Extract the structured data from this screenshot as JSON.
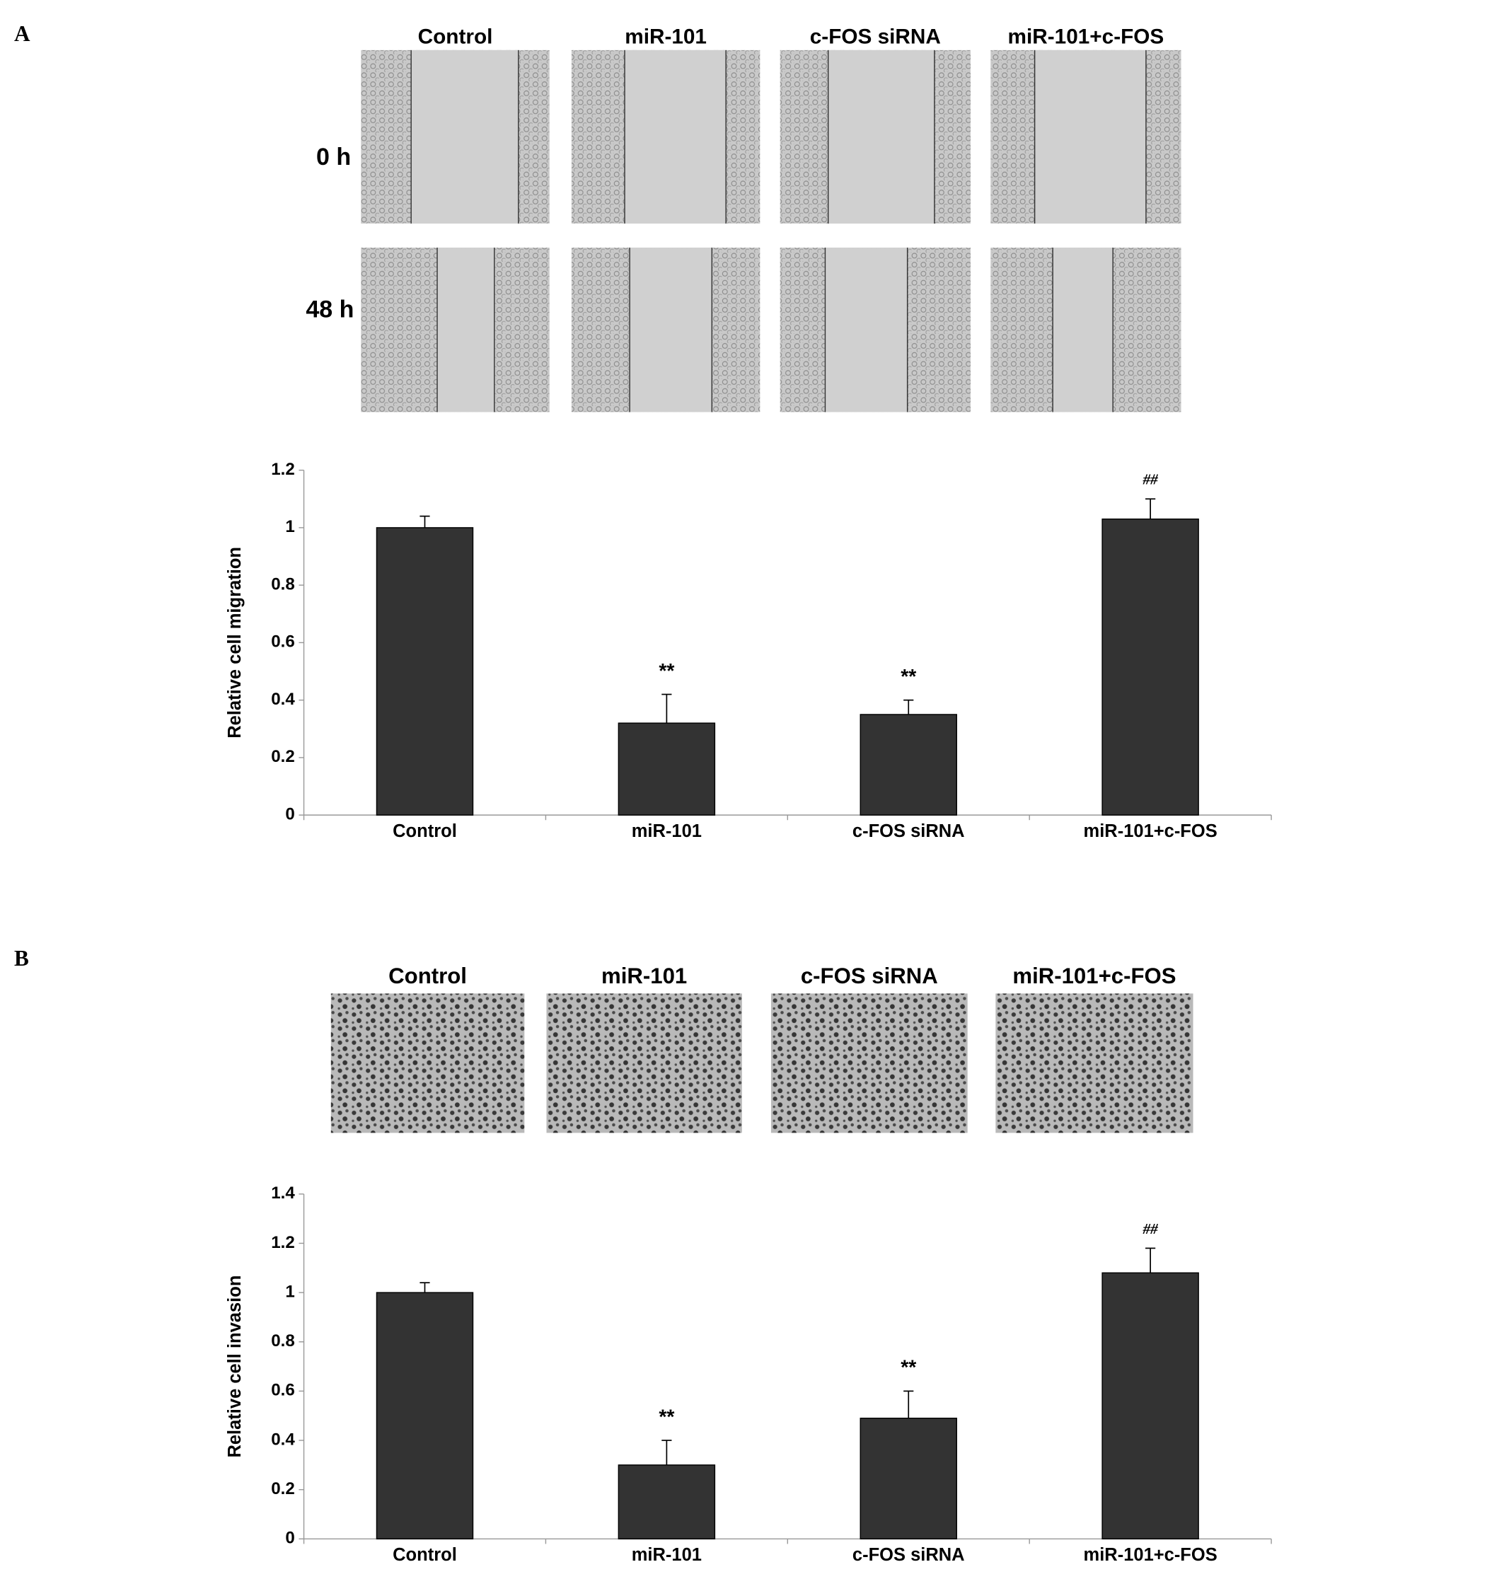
{
  "panel_a": {
    "label": "A",
    "columns": [
      "Control",
      "miR-101",
      "c-FOS siRNA",
      "miR-101+c-FOS"
    ],
    "rows": [
      "0 h",
      "48 h"
    ]
  },
  "panel_b": {
    "label": "B",
    "columns": [
      "Control",
      "miR-101",
      "c-FOS siRNA",
      "miR-101+c-FOS"
    ]
  },
  "chart_data": [
    {
      "type": "bar",
      "y_label": "Relative cell migration",
      "categories": [
        "Control",
        "miR-101",
        "c-FOS siRNA",
        "miR-101+c-FOS"
      ],
      "values": [
        1.0,
        0.32,
        0.35,
        1.03
      ],
      "errors": [
        0.04,
        0.1,
        0.05,
        0.07
      ],
      "annotations": [
        null,
        "**",
        "**",
        "##"
      ],
      "color": "#333333",
      "ylim": [
        0,
        1.2
      ],
      "yticks": [
        0,
        0.2,
        0.4,
        0.6,
        0.8,
        1,
        1.2
      ]
    },
    {
      "type": "bar",
      "y_label": "Relative cell invasion",
      "categories": [
        "Control",
        "miR-101",
        "c-FOS siRNA",
        "miR-101+c-FOS"
      ],
      "values": [
        1.0,
        0.3,
        0.49,
        1.08
      ],
      "errors": [
        0.04,
        0.1,
        0.11,
        0.1
      ],
      "annotations": [
        null,
        "**",
        "**",
        "##"
      ],
      "color": "#333333",
      "ylim": [
        0,
        1.4
      ],
      "yticks": [
        0,
        0.2,
        0.4,
        0.6,
        0.8,
        1,
        1.2,
        1.4
      ]
    }
  ]
}
